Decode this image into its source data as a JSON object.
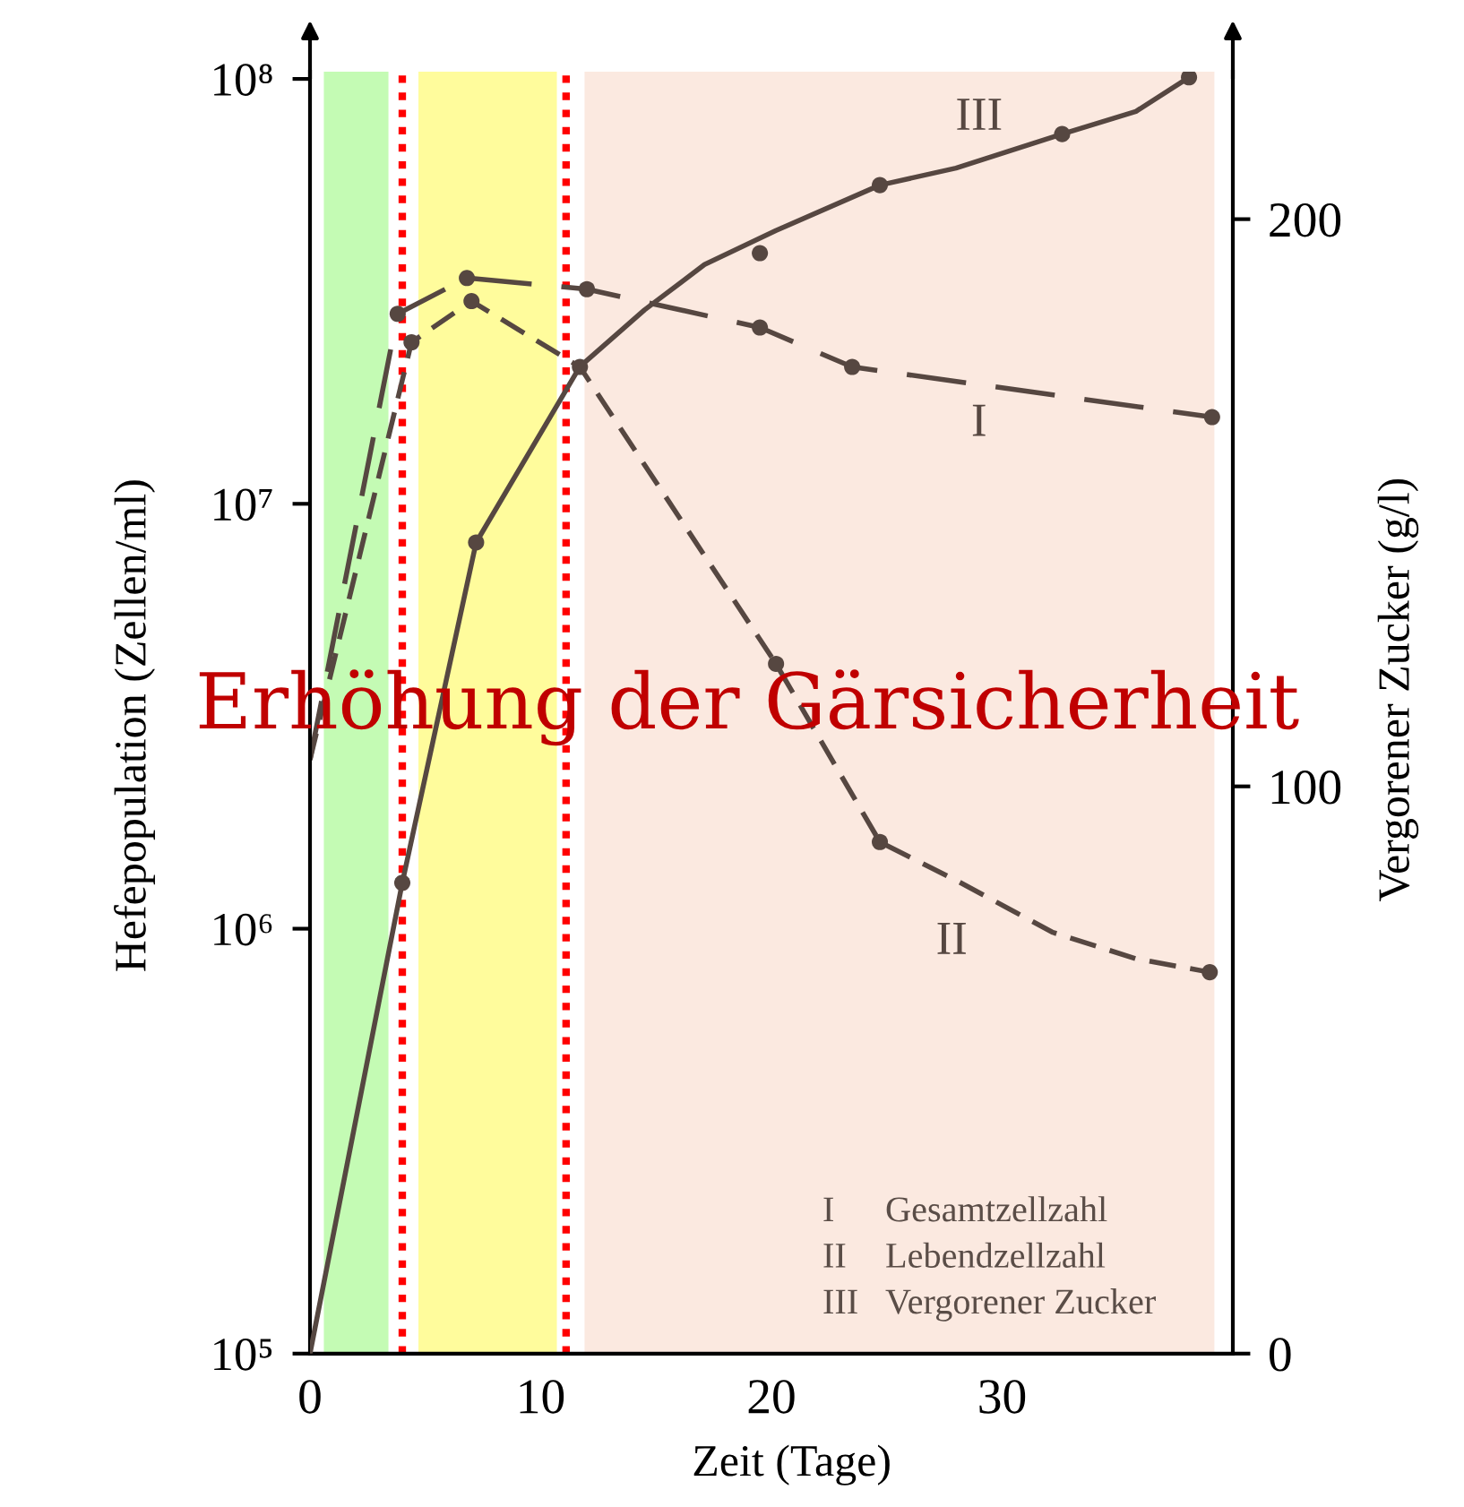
{
  "chart_data": {
    "type": "line",
    "xlabel": "Zeit (Tage)",
    "ylabel": "Hefepopulation (Zellen/ml)",
    "y2label": "Vergorener Zucker (g/l)",
    "xlim": [
      0,
      40
    ],
    "xticks": [
      0,
      10,
      20,
      30
    ],
    "ylim": [
      100000,
      104000000
    ],
    "yticks": [
      {
        "value": 100000,
        "label": "10⁵"
      },
      {
        "value": 1000000,
        "label": "10⁶"
      },
      {
        "value": 10000000,
        "label": "10⁷"
      },
      {
        "value": 100000000,
        "label": "10⁸"
      }
    ],
    "y2lim": [
      0,
      226
    ],
    "y2ticks": [
      0,
      100,
      200
    ],
    "log": "y",
    "series": [
      {
        "name": "I",
        "color": "#564741",
        "line_style": "dashed",
        "marker": "none",
        "x": [
          0,
          3.8,
          6.8,
          12.0,
          19.5,
          23.5,
          39.1
        ],
        "values": [
          2500000,
          28000000,
          34000000,
          32000000,
          26000000,
          21000000,
          16000000
        ]
      },
      {
        "name": "II",
        "color": "#564741",
        "line_style": "dashed",
        "marker": "none",
        "x": [
          0,
          4.4,
          7.0,
          11.7,
          20.2,
          24.7,
          28.0,
          32.2,
          35.8,
          39.0
        ],
        "values": [
          2500000,
          24000000,
          30000000,
          21000000,
          4200000,
          1600000,
          1300000,
          980000,
          850000,
          790000
        ]
      },
      {
        "name": "III",
        "axis": "y2",
        "color": "#564741",
        "line_style": "solid",
        "marker": "none",
        "x": [
          0,
          4.0,
          7.2,
          11.7,
          14.5,
          17.1,
          20.2,
          24.7,
          28.0,
          32.6,
          35.8,
          38.1
        ],
        "values": [
          0,
          83,
          143,
          174,
          184,
          192,
          198,
          206,
          209,
          215,
          219,
          225
        ]
      },
      {
        "type": "scatter",
        "color": "#564741",
        "marker": "circle",
        "x": [
          3.8,
          6.8,
          12.0,
          19.5,
          23.5,
          39.1
        ],
        "values": [
          28000000,
          34000000,
          32000000,
          26000000,
          21000000,
          16000000
        ]
      },
      {
        "type": "scatter",
        "color": "#564741",
        "marker": "circle",
        "x": [
          4.4,
          7.0,
          11.7,
          20.2,
          24.7,
          39.0
        ],
        "values": [
          24000000,
          30000000,
          21000000,
          4200000,
          1600000,
          790000
        ]
      },
      {
        "type": "scatter",
        "axis": "y2",
        "color": "#564741",
        "marker": "circle",
        "x": [
          4.0,
          7.2,
          19.5,
          24.7,
          32.6,
          38.1
        ],
        "values": [
          83,
          143,
          194,
          206,
          215,
          225
        ]
      }
    ],
    "bands": [
      {
        "axis": "x",
        "from": 0.6,
        "to": 3.4,
        "color": "#c4fbb4"
      },
      {
        "axis": "x",
        "from": 4.7,
        "to": 10.7,
        "color": "#fffc9c"
      },
      {
        "axis": "x",
        "from": 11.9,
        "to": 39.2,
        "color": "#fbe9e0"
      }
    ],
    "ref_lines": [
      {
        "axis": "x",
        "value": 4.0,
        "color": "#ff0000",
        "line_style": "dotted"
      },
      {
        "axis": "x",
        "value": 11.1,
        "color": "#ff0000",
        "line_style": "dotted"
      }
    ],
    "annotations": [
      "Erhöhung der Gärsicherheit",
      "I Gesamtzellzahl",
      "II Lebendzellzahl",
      "III Vergorener Zucker"
    ]
  }
}
